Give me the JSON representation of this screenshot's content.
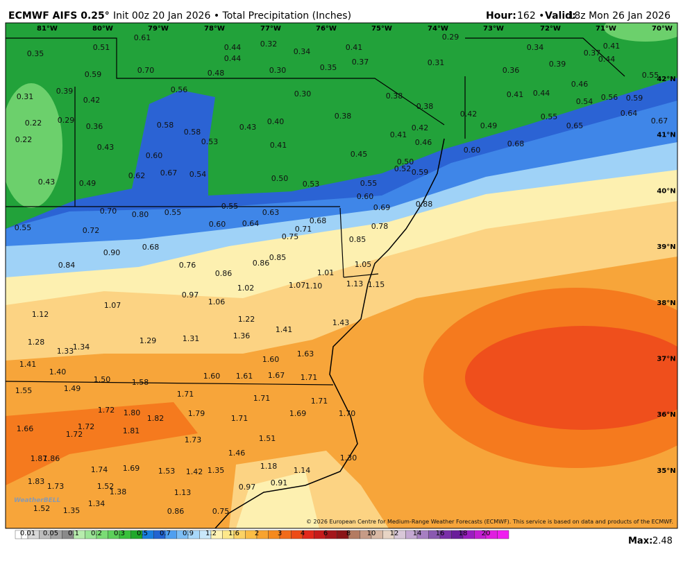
{
  "header": {
    "model": "ECMWF AIFS 0.25°",
    "info": "Init 00z 20 Jan 2026 • Total Precipitation (Inches)",
    "hour_label": "Hour:",
    "hour": "162 •",
    "valid_label": "Valid:",
    "valid": "18z Mon 26 Jan 2026"
  },
  "longitudes": [
    "81°W",
    "80°W",
    "79°W",
    "78°W",
    "77°W",
    "76°W",
    "75°W",
    "74°W",
    "73°W",
    "72°W",
    "71°W",
    "70°W"
  ],
  "latitudes": [
    "42°N",
    "41°N",
    "40°N",
    "39°N",
    "38°N",
    "37°N",
    "36°N",
    "35°N"
  ],
  "labels": [
    "0.35",
    "0.51",
    "0.61",
    "0.70",
    "0.59",
    "0.44",
    "0.44",
    "0.32",
    "0.34",
    "0.41",
    "0.37",
    "0.35",
    "0.30",
    "0.48",
    "0.56",
    "0.29",
    "0.31",
    "0.34",
    "0.39",
    "0.36",
    "0.37",
    "0.41",
    "0.44",
    "0.55",
    "0.46",
    "0.41",
    "0.44",
    "0.30",
    "0.38",
    "0.38",
    "0.31",
    "0.39",
    "0.42",
    "0.22",
    "0.29",
    "0.36",
    "0.22",
    "0.43",
    "0.58",
    "0.58",
    "0.53",
    "0.43",
    "0.40",
    "0.41",
    "0.38",
    "0.42",
    "0.49",
    "0.55",
    "0.54",
    "0.56",
    "0.59",
    "0.64",
    "0.65",
    "0.67",
    "0.42",
    "0.41",
    "0.46",
    "0.45",
    "0.60",
    "0.62",
    "0.67",
    "0.54",
    "0.49",
    "0.43",
    "0.50",
    "0.52",
    "0.59",
    "0.60",
    "0.68",
    "0.50",
    "0.53",
    "0.55",
    "0.60",
    "0.69",
    "0.88",
    "0.55",
    "0.70",
    "0.80",
    "0.55",
    "0.55",
    "0.63",
    "0.60",
    "0.64",
    "0.68",
    "0.71",
    "0.75",
    "0.72",
    "0.78",
    "0.85",
    "0.68",
    "0.90",
    "0.85",
    "0.86",
    "0.84",
    "0.76",
    "0.86",
    "1.01",
    "1.05",
    "1.02",
    "1.07",
    "1.10",
    "1.13",
    "1.15",
    "0.97",
    "1.06",
    "1.07",
    "1.12",
    "1.22",
    "1.43",
    "1.41",
    "1.36",
    "1.28",
    "1.34",
    "1.29",
    "1.31",
    "1.33",
    "1.63",
    "1.60",
    "1.41",
    "1.40",
    "1.50",
    "1.58",
    "1.60",
    "1.61",
    "1.67",
    "1.71",
    "1.55",
    "1.49",
    "1.71",
    "1.71",
    "1.71",
    "1.72",
    "1.80",
    "1.82",
    "1.79",
    "1.71",
    "1.69",
    "1.70",
    "1.72",
    "1.72",
    "1.66",
    "1.81",
    "1.73",
    "1.51",
    "1.46",
    "1.30",
    "1.87",
    "1.86",
    "1.18",
    "1.14",
    "1.74",
    "1.69",
    "1.53",
    "1.42",
    "1.35",
    "1.83",
    "1.73",
    "1.52",
    "1.38",
    "0.91",
    "0.97",
    "1.13",
    "1.34",
    "1.52",
    "1.35",
    "0.86",
    "0.75"
  ],
  "logo": "WeatherBELL",
  "credit": "© 2026 European Centre for Medium-Range Weather Forecasts (ECMWF). This service is based on data and products of the ECMWF.",
  "colorbar": {
    "ticks": [
      0.01,
      0.05,
      0.1,
      0.2,
      0.3,
      0.5,
      0.7,
      0.9,
      1.2,
      1.6,
      2,
      3,
      4,
      6,
      8,
      10,
      12,
      14,
      16,
      18,
      20
    ]
  },
  "footer": {
    "max_label": "Max:",
    "max": "2.48"
  }
}
